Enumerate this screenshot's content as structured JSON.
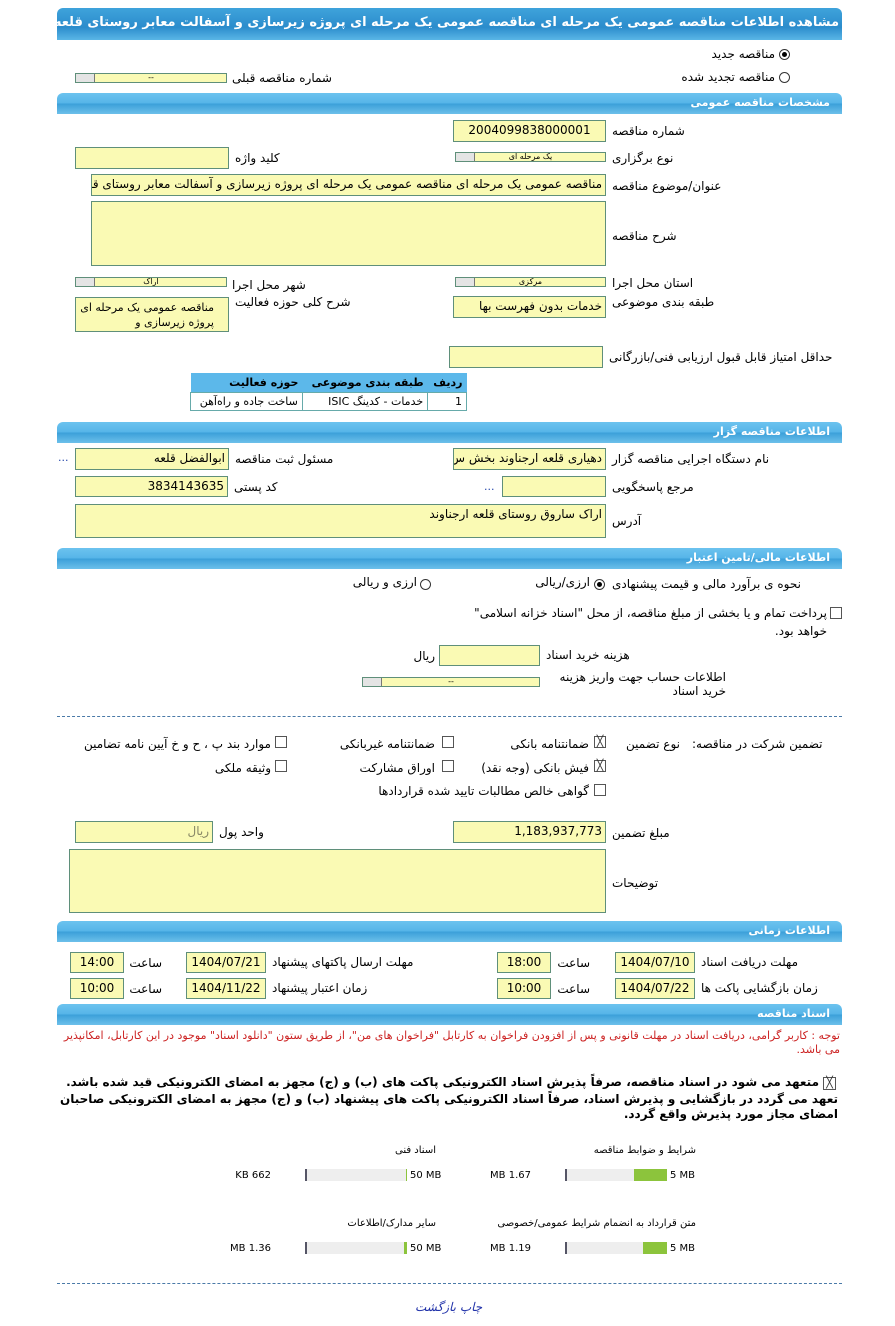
{
  "title": "مشاهده اطلاعات مناقصه عمومی یک مرحله ای مناقصه عمومی یک مرحله ای پروژه زیرسازی و آسفالت معابر روستای قلعه ارجناوند",
  "tender_mode": {
    "new_label": "مناقصه جدید",
    "renewed_label": "مناقصه تجدید شده",
    "selected": "new",
    "prev_number_label": "شماره مناقصه قبلی",
    "prev_number_value": "--"
  },
  "general": {
    "header": "مشخصات مناقصه عمومی",
    "number_label": "شماره مناقصه",
    "number_value": "2004099838000001",
    "type_label": "نوع برگزاری",
    "type_value": "یک مرحله ای",
    "keyword_label": "کلید واژه",
    "keyword_value": "",
    "subject_label": "عنوان/موضوع مناقصه",
    "subject_value": "مناقصه عمومی یک مرحله ای مناقصه عمومی یک مرحله ای پروژه زیرسازی و آسفالت معابر روستای قلعه ارجناوند",
    "description_label": "شرح مناقصه",
    "description_value": "",
    "province_label": "استان محل اجرا",
    "province_value": "مرکزی",
    "city_label": "شهر محل اجرا",
    "city_value": "اراک",
    "category_label": "طبقه بندی موضوعی",
    "category_value": "خدمات بدون فهرست بها",
    "activity_label": "شرح کلی حوزه فعالیت",
    "activity_value": "مناقصه عمومی یک مرحله ای پروژه زیرسازی و",
    "min_score_label": "حداقل امتیاز قابل قبول ارزیابی فنی/بازرگانی",
    "min_score_value": "",
    "table": {
      "headers": [
        "ردیف",
        "طبقه بندی موضوعی",
        "حوزه فعالیت"
      ],
      "rows": [
        [
          "1",
          "خدمات - کدینگ ISIC",
          "ساخت جاده و راه‌آهن"
        ]
      ]
    }
  },
  "organizer": {
    "header": "اطلاعات مناقصه گزار",
    "org_label": "نام دستگاه اجرایی مناقصه گزار",
    "org_value": "دهیاری قلعه ارجناوند بخش س",
    "registrar_label": "مسئول ثبت مناقصه",
    "registrar_value": "ابوالفضل قلعه",
    "reference_label": "مرجع پاسخگویی",
    "reference_value": "",
    "more": "...",
    "postal_label": "کد پستی",
    "postal_value": "3834143635",
    "address_label": "آدرس",
    "address_value": "اراک ساروق روستای قلعه ارجناوند"
  },
  "finance": {
    "header": "اطلاعات مالی/تامین اعتبار",
    "estimate_label": "نحوه ی برآورد مالی و قیمت پیشنهادی",
    "opt1": "ارزی/ریالی",
    "opt2": "ارزی و ریالی",
    "selected": "ارزی/ریالی",
    "treasury_text": "پرداخت تمام و یا بخشی از مبلغ مناقصه، از محل \"اسناد خزانه اسلامی\" خواهد بود.",
    "treasury_checked": false,
    "doc_cost_label": "هزینه خرید اسناد",
    "doc_cost_value": "",
    "doc_cost_unit": "ریال",
    "account_label": "اطلاعات حساب جهت واریز هزینه خرید اسناد",
    "account_value": "--"
  },
  "guarantee": {
    "label": "تضمین شرکت در مناقصه:",
    "type_label": "نوع تضمین",
    "options": [
      {
        "label": "ضمانتنامه بانکی",
        "checked": true
      },
      {
        "label": "ضمانتنامه غیربانکی",
        "checked": false
      },
      {
        "label": "موارد بند پ ، ح و خ آیین نامه تضامین",
        "checked": false
      },
      {
        "label": "فیش بانکی (وجه نقد)",
        "checked": true
      },
      {
        "label": "اوراق مشارکت",
        "checked": false
      },
      {
        "label": "وثیقه ملکی",
        "checked": false
      },
      {
        "label": "گواهی خالص مطالبات تایید شده قراردادها",
        "checked": false
      }
    ],
    "amount_label": "مبلغ تضمین",
    "amount_value": "1,183,937,773",
    "currency_label": "واحد پول",
    "currency_value": "ریال",
    "notes_label": "توضیحات",
    "notes_value": ""
  },
  "timing": {
    "header": "اطلاعات زمانی",
    "time_label": "ساعت",
    "doc_deadline_label": "مهلت دریافت اسناد",
    "doc_deadline_date": "1404/07/10",
    "doc_deadline_time": "18:00",
    "submit_label": "مهلت ارسال پاکتهای پیشنهاد",
    "submit_date": "1404/07/21",
    "submit_time": "14:00",
    "opening_label": "زمان بازگشایی پاکت ها",
    "opening_date": "1404/07/22",
    "opening_time": "10:00",
    "validity_label": "زمان اعتبار پیشنهاد",
    "validity_date": "1404/11/22",
    "validity_time": "10:00"
  },
  "documents": {
    "header": "اسناد مناقصه",
    "notice": "توجه : کاربر گرامی، دریافت اسناد در مهلت قانونی و پس از افزودن فراخوان به کارتابل \"فراخوان های من\"، از طریق ستون \"دانلود اسناد\" موجود در این کارتابل، امکانپذیر می باشد.",
    "commit1": "متعهد می شود در اسناد مناقصه، صرفاً پذیرش اسناد الکترونیکی پاکت های (ب) و (ج) مجهز به امضای الکترونیکی قید شده باشد.",
    "commit2": "تعهد می گردد در بازگشایی و پذیرش اسناد، صرفاً اسناد الکترونیکی پاکت های پیشنهاد (ب) و (ج) مجهز به امضای الکترونیکی صاحبان امضای مجاز مورد پذیرش واقع گردد.",
    "commit_checked": true,
    "files": [
      {
        "label": "شرایط و ضوابط مناقصه",
        "size": "1.67 MB",
        "max": "5 MB",
        "fraction": 0.334
      },
      {
        "label": "اسناد فنی",
        "size": "662 KB",
        "max": "50 MB",
        "fraction": 0.013
      },
      {
        "label": "متن قرارداد به انضمام شرایط عمومی/خصوصی",
        "size": "1.19 MB",
        "max": "5 MB",
        "fraction": 0.238
      },
      {
        "label": "سایر مدارک/اطلاعات",
        "size": "1.36 MB",
        "max": "50 MB",
        "fraction": 0.027
      }
    ]
  },
  "footer": {
    "print": "چاپ",
    "back": "بازگشت"
  },
  "colors": {
    "header": "#4fb0e6",
    "field": "#fafab4",
    "progress": "#8cc43c",
    "notice": "#cc2222"
  }
}
